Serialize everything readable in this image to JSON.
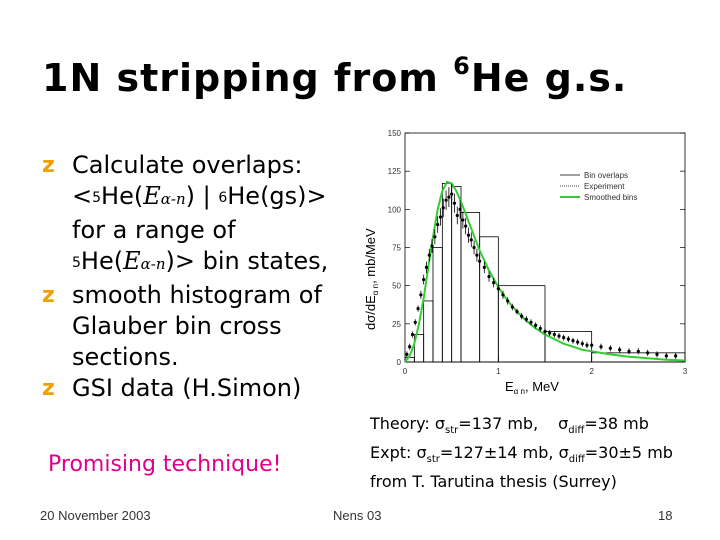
{
  "slide": {
    "title_main": "1N stripping from ",
    "title_sup": "6",
    "title_end": "He g.s.",
    "bullets": [
      {
        "lines": [
          "Calculate overlaps:"
        ],
        "overlap_line": {
          "open": "<",
          "sup1": "5",
          "he": "He(",
          "e_var": "E",
          "e_sub": "α-n",
          "mid": ") | ",
          "sup2": "6",
          "he2": "He(gs)>"
        },
        "range_line": "for a range of",
        "bin_line": {
          "sup": "5",
          "he": "He(",
          "e_var": "E",
          "e_sub": "α-n",
          "end": ")> bin states,"
        }
      },
      {
        "lines": [
          "smooth histogram of",
          "Glauber  bin cross",
          "sections."
        ]
      },
      {
        "lines": [
          "GSI data (H.Simon)"
        ]
      }
    ],
    "promising": "Promising technique!",
    "theory": {
      "line1_a": "Theory: σ",
      "line1_sub1": "str",
      "line1_b": "=137 mb,",
      "line1_c": "σ",
      "line1_sub2": "diff",
      "line1_d": "=38 mb",
      "line2_a": "Expt:  σ",
      "line2_sub1": "str",
      "line2_b": "=127±14 mb, σ",
      "line2_sub2": "diff",
      "line2_c": "=30±5 mb",
      "line3": "from T. Tarutina thesis (Surrey)"
    },
    "footer": {
      "date": "20 November 2003",
      "center": "Nens 03",
      "page": "18"
    }
  },
  "chart_data": {
    "type": "line",
    "ylabel": "dσ/dE",
    "ylabel_sub": "α n",
    "ylabel_unit": ", mb/MeV",
    "xlabel": "E",
    "xlabel_sub": "α n",
    "xlabel_unit": ", MeV",
    "xlim": [
      0,
      3
    ],
    "ylim": [
      0,
      150
    ],
    "x_ticks": [
      "0",
      "1",
      "2",
      "3"
    ],
    "y_ticks": [
      "0",
      "25",
      "50",
      "75",
      "100",
      "125",
      "150"
    ],
    "legend_position": "top-right",
    "legend": [
      "Bin overlaps",
      "Experiment",
      "Smoothed bins"
    ],
    "series": [
      {
        "name": "Bin overlaps",
        "kind": "histogram",
        "color": "#000000",
        "bins": [
          {
            "x0": 0.0,
            "x1": 0.1,
            "y": 3
          },
          {
            "x0": 0.1,
            "x1": 0.2,
            "y": 18
          },
          {
            "x0": 0.2,
            "x1": 0.3,
            "y": 40
          },
          {
            "x0": 0.3,
            "x1": 0.4,
            "y": 75
          },
          {
            "x0": 0.4,
            "x1": 0.5,
            "y": 117
          },
          {
            "x0": 0.5,
            "x1": 0.6,
            "y": 115
          },
          {
            "x0": 0.6,
            "x1": 0.8,
            "y": 98
          },
          {
            "x0": 0.8,
            "x1": 1.0,
            "y": 82
          },
          {
            "x0": 1.0,
            "x1": 1.5,
            "y": 50
          },
          {
            "x0": 1.5,
            "x1": 2.0,
            "y": 20
          },
          {
            "x0": 2.0,
            "x1": 3.0,
            "y": 6
          }
        ]
      },
      {
        "name": "Experiment",
        "kind": "points",
        "color": "#000000",
        "x": [
          0.02,
          0.05,
          0.08,
          0.11,
          0.14,
          0.17,
          0.2,
          0.23,
          0.26,
          0.29,
          0.32,
          0.35,
          0.38,
          0.41,
          0.44,
          0.47,
          0.5,
          0.53,
          0.56,
          0.59,
          0.62,
          0.65,
          0.68,
          0.71,
          0.74,
          0.77,
          0.8,
          0.85,
          0.9,
          0.95,
          1.0,
          1.05,
          1.1,
          1.15,
          1.2,
          1.25,
          1.3,
          1.35,
          1.4,
          1.45,
          1.5,
          1.55,
          1.6,
          1.65,
          1.7,
          1.75,
          1.8,
          1.85,
          1.9,
          1.95,
          2.0,
          2.1,
          2.2,
          2.3,
          2.4,
          2.5,
          2.6,
          2.7,
          2.8,
          2.9
        ],
        "y": [
          5,
          10,
          18,
          26,
          35,
          44,
          54,
          62,
          70,
          76,
          82,
          90,
          95,
          101,
          106,
          108,
          110,
          104,
          96,
          100,
          93,
          89,
          83,
          80,
          75,
          70,
          66,
          62,
          56,
          52,
          48,
          44,
          40,
          36,
          33,
          30,
          28,
          26,
          24,
          22,
          20,
          19,
          18,
          17,
          16,
          15,
          14,
          13,
          12,
          11,
          11,
          10,
          9,
          8,
          7,
          7,
          6,
          5,
          4,
          4
        ]
      },
      {
        "name": "Smoothed bins",
        "kind": "curve",
        "color": "#33cc33",
        "x": [
          0.0,
          0.05,
          0.1,
          0.15,
          0.2,
          0.25,
          0.3,
          0.35,
          0.4,
          0.45,
          0.5,
          0.55,
          0.6,
          0.65,
          0.7,
          0.75,
          0.8,
          0.9,
          1.0,
          1.1,
          1.2,
          1.3,
          1.4,
          1.5,
          1.6,
          1.7,
          1.8,
          1.9,
          2.0,
          2.2,
          2.4,
          2.6,
          2.8,
          3.0
        ],
        "y": [
          0,
          4,
          12,
          25,
          42,
          62,
          82,
          100,
          112,
          118,
          117,
          112,
          105,
          97,
          89,
          81,
          73,
          60,
          49,
          40,
          33,
          27,
          22,
          18,
          15,
          12,
          10,
          8,
          7,
          5,
          3.5,
          2.5,
          1.5,
          1
        ]
      }
    ]
  }
}
